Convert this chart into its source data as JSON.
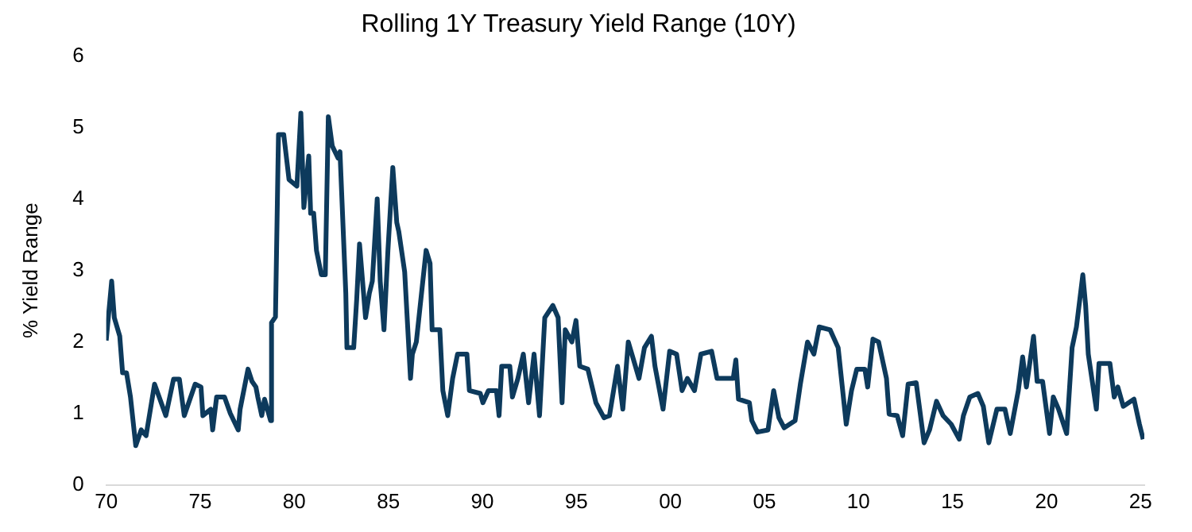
{
  "chart_data": {
    "type": "line",
    "title": "Rolling 1Y Treasury Yield Range (10Y)",
    "ylabel": "% Yield Range",
    "grid": false,
    "legend": false,
    "marker": "none",
    "line_style": "solid",
    "xlim": [
      1970,
      2025.2
    ],
    "ylim": [
      0,
      6
    ],
    "yticks": [
      0,
      1,
      2,
      3,
      4,
      5,
      6
    ],
    "xticks": [
      {
        "value": 1970,
        "label": "70"
      },
      {
        "value": 1975,
        "label": "75"
      },
      {
        "value": 1980,
        "label": "80"
      },
      {
        "value": 1985,
        "label": "85"
      },
      {
        "value": 1990,
        "label": "90"
      },
      {
        "value": 1995,
        "label": "95"
      },
      {
        "value": 2000,
        "label": "00"
      },
      {
        "value": 2005,
        "label": "05"
      },
      {
        "value": 2010,
        "label": "10"
      },
      {
        "value": 2015,
        "label": "15"
      },
      {
        "value": 2020,
        "label": "20"
      },
      {
        "value": 2025,
        "label": "25"
      }
    ],
    "series": [
      {
        "color": "#0d3a5c",
        "x": [
          1970.0,
          1970.29,
          1970.43,
          1970.72,
          1970.87,
          1971.08,
          1971.29,
          1971.57,
          1971.86,
          1972.12,
          1972.57,
          1973.17,
          1973.58,
          1973.89,
          1974.15,
          1974.73,
          1975.04,
          1975.14,
          1975.56,
          1975.66,
          1975.87,
          1976.29,
          1976.6,
          1977.02,
          1977.12,
          1977.54,
          1977.75,
          1977.96,
          1978.06,
          1978.27,
          1978.42,
          1978.74,
          1978.79,
          1979.0,
          1979.16,
          1979.44,
          1979.72,
          1980.14,
          1980.35,
          1980.51,
          1980.77,
          1980.87,
          1981.03,
          1981.18,
          1981.44,
          1981.65,
          1981.81,
          1982.02,
          1982.33,
          1982.43,
          1982.74,
          1982.8,
          1983.16,
          1983.32,
          1983.47,
          1983.79,
          1983.99,
          1984.15,
          1984.41,
          1984.57,
          1984.77,
          1984.98,
          1985.24,
          1985.45,
          1985.56,
          1985.87,
          1986.18,
          1986.28,
          1986.49,
          1987.01,
          1987.22,
          1987.33,
          1987.74,
          1987.9,
          1988.16,
          1988.42,
          1988.68,
          1989.18,
          1989.31,
          1989.89,
          1990.03,
          1990.32,
          1990.75,
          1990.89,
          1991.03,
          1991.46,
          1991.6,
          1991.89,
          1992.18,
          1992.46,
          1992.75,
          1993.04,
          1993.32,
          1993.75,
          1994.03,
          1994.24,
          1994.41,
          1994.76,
          1994.98,
          1995.18,
          1995.61,
          1996.04,
          1996.47,
          1996.76,
          1997.19,
          1997.47,
          1997.76,
          1998.04,
          1998.33,
          1998.62,
          1998.99,
          1999.18,
          1999.61,
          1999.96,
          2000.33,
          2000.62,
          2000.9,
          2001.28,
          2001.62,
          2002.19,
          2002.48,
          2003.34,
          2003.48,
          2003.62,
          2004.2,
          2004.33,
          2004.63,
          2005.19,
          2005.49,
          2005.77,
          2006.05,
          2006.63,
          2006.91,
          2007.29,
          2007.63,
          2007.91,
          2008.49,
          2008.92,
          2009.35,
          2009.63,
          2009.91,
          2010.34,
          2010.49,
          2010.77,
          2011.07,
          2011.49,
          2011.63,
          2012.06,
          2012.35,
          2012.64,
          2013.07,
          2013.49,
          2013.78,
          2014.15,
          2014.5,
          2014.93,
          2015.36,
          2015.58,
          2015.92,
          2016.35,
          2016.64,
          2016.93,
          2017.36,
          2017.79,
          2018.07,
          2018.5,
          2018.73,
          2018.93,
          2019.31,
          2019.5,
          2019.79,
          2020.16,
          2020.36,
          2020.64,
          2021.07,
          2021.36,
          2021.59,
          2021.93,
          2022.08,
          2022.22,
          2022.65,
          2022.79,
          2023.37,
          2023.6,
          2023.79,
          2024.08,
          2024.65,
          2024.94,
          2025.14
        ],
        "values": [
          2.02,
          2.85,
          2.34,
          2.08,
          1.57,
          1.57,
          1.23,
          0.55,
          0.77,
          0.69,
          1.41,
          0.97,
          1.48,
          1.48,
          0.97,
          1.41,
          1.37,
          0.97,
          1.06,
          0.77,
          1.23,
          1.23,
          1.0,
          0.77,
          1.06,
          1.62,
          1.45,
          1.37,
          1.23,
          0.97,
          1.2,
          0.9,
          2.27,
          2.35,
          4.9,
          4.9,
          4.27,
          4.18,
          5.2,
          3.88,
          4.6,
          3.8,
          3.8,
          3.28,
          2.94,
          2.94,
          5.15,
          4.74,
          4.57,
          4.66,
          2.68,
          1.92,
          1.92,
          2.6,
          3.37,
          2.34,
          2.68,
          2.85,
          4.0,
          2.85,
          2.17,
          3.28,
          4.44,
          3.67,
          3.54,
          2.98,
          1.49,
          1.83,
          2.0,
          3.28,
          3.1,
          2.17,
          2.17,
          1.32,
          0.97,
          1.49,
          1.83,
          1.83,
          1.32,
          1.28,
          1.15,
          1.32,
          1.32,
          0.97,
          1.66,
          1.66,
          1.23,
          1.49,
          1.83,
          1.15,
          1.83,
          0.97,
          2.34,
          2.51,
          2.34,
          1.15,
          2.17,
          2.0,
          2.3,
          1.66,
          1.62,
          1.15,
          0.94,
          0.97,
          1.66,
          1.06,
          2.0,
          1.75,
          1.49,
          1.92,
          2.08,
          1.66,
          1.06,
          1.87,
          1.83,
          1.32,
          1.49,
          1.32,
          1.83,
          1.87,
          1.49,
          1.49,
          1.75,
          1.2,
          1.15,
          0.9,
          0.74,
          0.77,
          1.32,
          0.94,
          0.8,
          0.9,
          1.41,
          2.0,
          1.83,
          2.21,
          2.17,
          1.92,
          0.85,
          1.32,
          1.62,
          1.62,
          1.37,
          2.04,
          2.0,
          1.49,
          0.99,
          0.97,
          0.69,
          1.41,
          1.43,
          0.59,
          0.77,
          1.17,
          0.97,
          0.85,
          0.64,
          0.97,
          1.23,
          1.28,
          1.1,
          0.59,
          1.06,
          1.06,
          0.72,
          1.32,
          1.79,
          1.37,
          2.08,
          1.45,
          1.45,
          0.72,
          1.23,
          1.06,
          0.72,
          1.92,
          2.21,
          2.94,
          2.51,
          1.83,
          1.06,
          1.7,
          1.7,
          1.23,
          1.37,
          1.1,
          1.2,
          0.85,
          0.64
        ]
      }
    ]
  }
}
